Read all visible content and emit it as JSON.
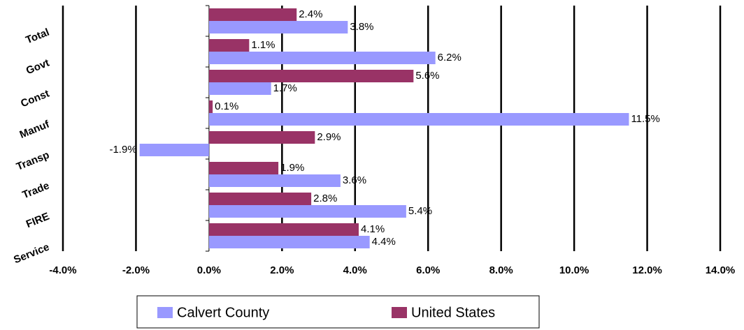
{
  "chart_data": {
    "type": "bar",
    "orientation": "horizontal",
    "categories": [
      "Total",
      "Govt",
      "Const",
      "Manuf",
      "Transp",
      "Trade",
      "FIRE",
      "Service"
    ],
    "series": [
      {
        "name": "Calvert County",
        "color": "#9999ff",
        "values": [
          3.8,
          6.2,
          1.7,
          11.5,
          -1.9,
          3.6,
          5.4,
          4.4
        ],
        "value_labels": [
          "3.8%",
          "6.2%",
          "1.7%",
          "11.5%",
          "-1.9%",
          "3.6%",
          "5.4%",
          "4.4%"
        ]
      },
      {
        "name": "United States",
        "color": "#993366",
        "values": [
          2.4,
          1.1,
          5.6,
          0.1,
          2.9,
          1.9,
          2.8,
          4.1
        ],
        "value_labels": [
          "2.4%",
          "1.1%",
          "5.6%",
          "0.1%",
          "2.9%",
          "1.9%",
          "2.8%",
          "4.1%"
        ]
      }
    ],
    "xlim": [
      -4,
      14
    ],
    "xticks": [
      {
        "value": -4,
        "label": "-4.0%"
      },
      {
        "value": -2,
        "label": "-2.0%"
      },
      {
        "value": 0,
        "label": "0.0%"
      },
      {
        "value": 2,
        "label": "2.0%"
      },
      {
        "value": 4,
        "label": "4.0%"
      },
      {
        "value": 6,
        "label": "6.0%"
      },
      {
        "value": 8,
        "label": "8.0%"
      },
      {
        "value": 10,
        "label": "10.0%"
      },
      {
        "value": 12,
        "label": "12.0%"
      },
      {
        "value": 14,
        "label": "14.0%"
      }
    ],
    "grid": true,
    "legend": "bottom"
  }
}
